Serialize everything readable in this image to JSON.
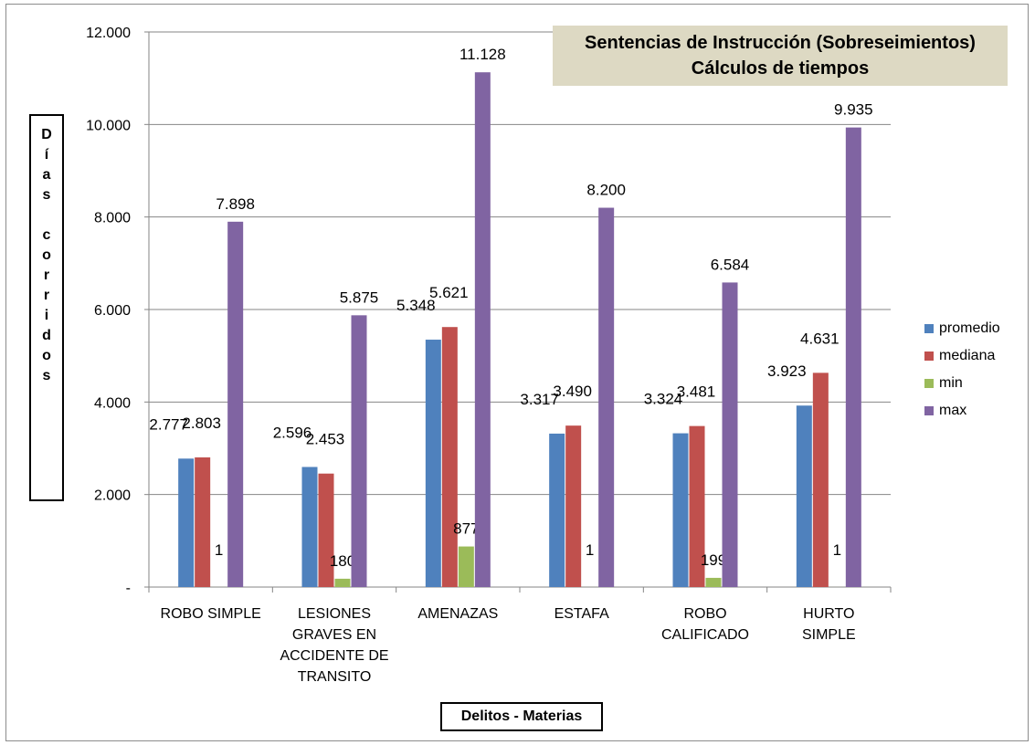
{
  "chart_data": {
    "type": "bar",
    "title": "Sentencias de Instrucción (Sobreseimientos)",
    "subtitle": "Cálculos de tiempos",
    "ylabel": "Días corridos",
    "ylabel_words": [
      "Días",
      "corridos"
    ],
    "xlabel": "Delitos - Materias",
    "ylim": [
      0,
      12000
    ],
    "yticks": [
      0,
      2000,
      4000,
      6000,
      8000,
      10000,
      12000
    ],
    "ytick_labels": [
      "-",
      "2.000",
      "4.000",
      "6.000",
      "8.000",
      "10.000",
      "12.000"
    ],
    "grid": true,
    "legend_position": "right",
    "categories": [
      [
        "ROBO SIMPLE"
      ],
      [
        "LESIONES",
        "GRAVES EN",
        "ACCIDENTE DE",
        "TRANSITO"
      ],
      [
        "AMENAZAS"
      ],
      [
        "ESTAFA"
      ],
      [
        "ROBO",
        "CALIFICADO"
      ],
      [
        "HURTO",
        "SIMPLE"
      ]
    ],
    "series": [
      {
        "name": "promedio",
        "color": "#4f81bd",
        "values": [
          2777,
          2596,
          5348,
          3317,
          3324,
          3923
        ],
        "labels": [
          "2.777",
          "2.596",
          "5.348",
          "3.317",
          "3.324",
          "3.923"
        ]
      },
      {
        "name": "mediana",
        "color": "#c0504d",
        "values": [
          2803,
          2453,
          5621,
          3490,
          3481,
          4631
        ],
        "labels": [
          "2.803",
          "2.453",
          "5.621",
          "3.490",
          "3.481",
          "4.631"
        ]
      },
      {
        "name": "min",
        "color": "#9bbb59",
        "values": [
          1,
          180,
          877,
          1,
          199,
          1
        ],
        "labels": [
          "1",
          "180",
          "877",
          "1",
          "199",
          "1"
        ]
      },
      {
        "name": "max",
        "color": "#8064a2",
        "values": [
          7898,
          5875,
          11128,
          8200,
          6584,
          9935
        ],
        "labels": [
          "7.898",
          "5.875",
          "11.128",
          "8.200",
          "6.584",
          "9.935"
        ]
      }
    ]
  }
}
